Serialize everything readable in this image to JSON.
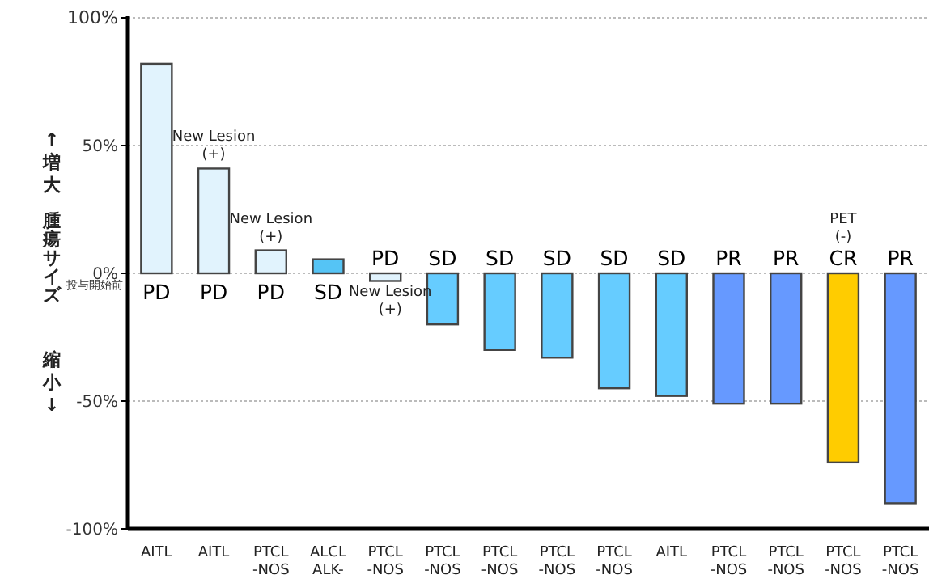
{
  "chart_data": {
    "type": "bar",
    "ylabel": "腫瘍サイズ",
    "categories": [
      "AITL",
      "AITL",
      "PTCL -NOS",
      "ALCL ALK-",
      "PTCL -NOS",
      "PTCL -NOS",
      "PTCL -NOS",
      "PTCL -NOS",
      "PTCL -NOS",
      "AITL",
      "PTCL -NOS",
      "PTCL -NOS",
      "PTCL -NOS",
      "PTCL -NOS"
    ],
    "values": [
      82,
      41,
      9,
      5.5,
      -3,
      -20,
      -30,
      -33,
      -45,
      -48,
      -51,
      -51,
      -74,
      -90
    ],
    "colors": [
      "#e1f3fd",
      "#e1f3fd",
      "#e1f3fd",
      "#55c4f5",
      "#e1f3fd",
      "#66ccff",
      "#66ccff",
      "#66ccff",
      "#66ccff",
      "#66ccff",
      "#6699ff",
      "#6699ff",
      "#ffcc00",
      "#6699ff"
    ],
    "value_labels": [
      "PD",
      "PD",
      "PD",
      "SD",
      "PD",
      "SD",
      "SD",
      "SD",
      "SD",
      "SD",
      "PR",
      "PR",
      "CR",
      "PR"
    ],
    "ylim": [
      -100,
      100
    ],
    "yticks": [
      {
        "value": 100,
        "label": "100%"
      },
      {
        "value": 50,
        "label": "50%"
      },
      {
        "value": 0,
        "label": "0%"
      },
      {
        "value": -50,
        "label": "-50%"
      },
      {
        "value": -100,
        "label": "-100%"
      }
    ],
    "grid": "y",
    "annotations": [
      "↑増大",
      "縮小↓",
      "投与開始前",
      "New Lesion (+)",
      "New Lesion (+)",
      "New Lesion (+)",
      "PET (-)"
    ]
  }
}
